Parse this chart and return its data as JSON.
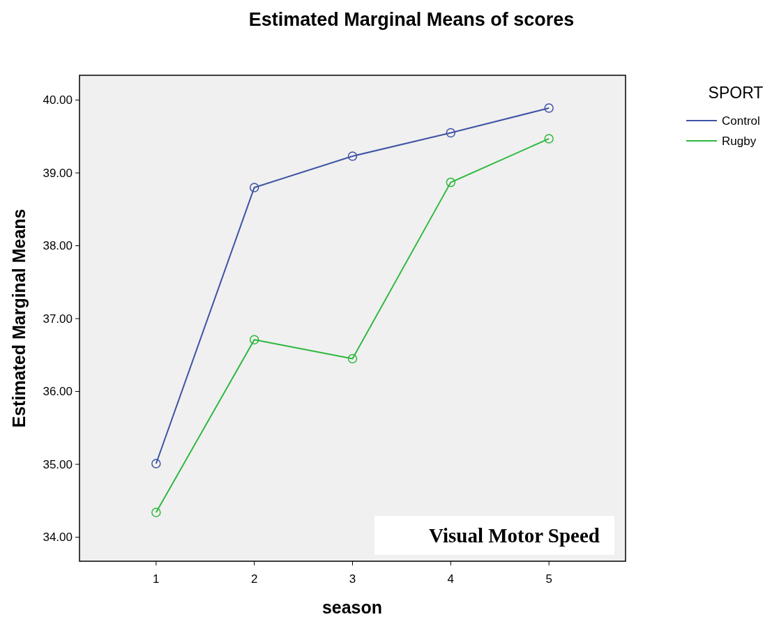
{
  "chart_data": {
    "type": "line",
    "title": "Estimated Marginal Means of scores",
    "xlabel": "season",
    "ylabel": "Estimated Marginal Means",
    "legend_title": "SPORT",
    "legend": "right",
    "marker": "circle",
    "grid": false,
    "x": [
      1,
      2,
      3,
      4,
      5
    ],
    "xlim": [
      0.22,
      5.78
    ],
    "xticks": [
      1,
      2,
      3,
      4,
      5
    ],
    "ylim": [
      33.67,
      40.34
    ],
    "yticks": [
      {
        "value": 34,
        "label": "34.00"
      },
      {
        "value": 35,
        "label": "35.00"
      },
      {
        "value": 36,
        "label": "36.00"
      },
      {
        "value": 37,
        "label": "37.00"
      },
      {
        "value": 38,
        "label": "38.00"
      },
      {
        "value": 39,
        "label": "39.00"
      },
      {
        "value": 40,
        "label": "40.00"
      }
    ],
    "series": [
      {
        "name": "Control",
        "color": "#3e53a4",
        "values": [
          35.01,
          38.8,
          39.23,
          39.55,
          39.89
        ]
      },
      {
        "name": "Rugby",
        "color": "#2db83d",
        "values": [
          34.34,
          36.71,
          36.45,
          38.87,
          39.47
        ]
      }
    ],
    "annotations": [
      "Visual Motor Speed"
    ]
  }
}
